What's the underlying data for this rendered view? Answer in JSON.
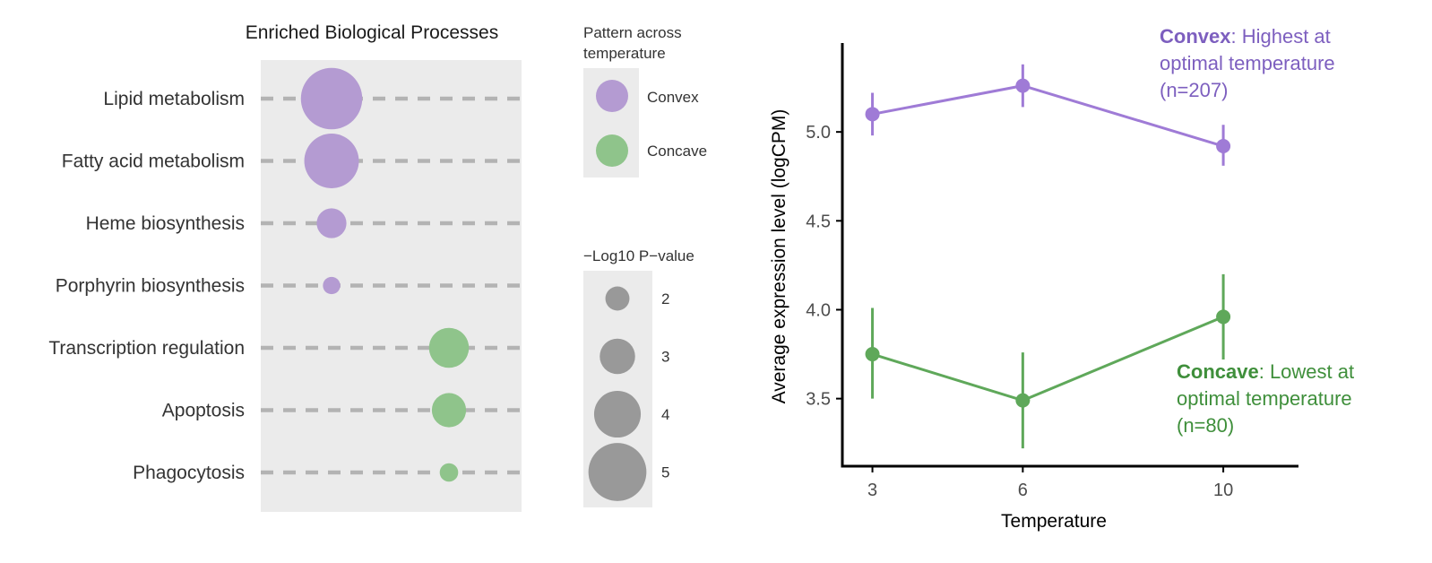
{
  "chart_data": [
    {
      "type": "scatter",
      "title": "Enriched Biological Processes",
      "categories": [
        "Lipid metabolism",
        "Fatty acid metabolism",
        "Heme biosynthesis",
        "Porphyrin biosynthesis",
        "Transcription regulation",
        "Apoptosis",
        "Phagocytosis"
      ],
      "points": [
        {
          "category": "Lipid metabolism",
          "pattern": "Convex",
          "neg_log10_p": 5.3
        },
        {
          "category": "Fatty acid metabolism",
          "pattern": "Convex",
          "neg_log10_p": 4.7
        },
        {
          "category": "Heme biosynthesis",
          "pattern": "Convex",
          "neg_log10_p": 2.5
        },
        {
          "category": "Porphyrin biosynthesis",
          "pattern": "Convex",
          "neg_log10_p": 1.4
        },
        {
          "category": "Transcription regulation",
          "pattern": "Concave",
          "neg_log10_p": 3.4
        },
        {
          "category": "Apoptosis",
          "pattern": "Concave",
          "neg_log10_p": 2.9
        },
        {
          "category": "Phagocytosis",
          "pattern": "Concave",
          "neg_log10_p": 1.5
        }
      ],
      "legend_pattern": {
        "title": "Pattern across temperature",
        "title_lines": [
          "Pattern across",
          "temperature"
        ],
        "entries": [
          {
            "label": "Convex",
            "color": "#b49bd2"
          },
          {
            "label": "Concave",
            "color": "#8fc48b"
          }
        ]
      },
      "legend_size": {
        "title": "−Log10 P−value",
        "entries": [
          {
            "label": "2",
            "value": 2
          },
          {
            "label": "3",
            "value": 3
          },
          {
            "label": "4",
            "value": 4
          },
          {
            "label": "5",
            "value": 5
          }
        ]
      }
    },
    {
      "type": "line",
      "xlabel": "Temperature",
      "ylabel": "Average expression level (logCPM)",
      "x": [
        3,
        6,
        10
      ],
      "x_ticks": [
        "3",
        "6",
        "10"
      ],
      "xlim": [
        2.4,
        11.5
      ],
      "y_ticks": [
        "3.5",
        "4.0",
        "4.5",
        "5.0"
      ],
      "ylim": [
        3.12,
        5.5
      ],
      "grid": false,
      "series": [
        {
          "name": "Convex",
          "color": "#9f7bd6",
          "values": [
            5.1,
            5.26,
            4.92
          ],
          "err_low": [
            4.98,
            5.14,
            4.81
          ],
          "err_high": [
            5.22,
            5.38,
            5.04
          ],
          "annotation": {
            "bold": "Convex",
            "lines": [
              ": Highest at",
              "optimal temperature",
              "(n=207)"
            ]
          }
        },
        {
          "name": "Concave",
          "color": "#5fa85a",
          "values": [
            3.75,
            3.49,
            3.96
          ],
          "err_low": [
            3.5,
            3.22,
            3.72
          ],
          "err_high": [
            4.01,
            3.76,
            4.2
          ],
          "annotation": {
            "bold": "Concave",
            "lines": [
              ": Lowest at",
              "optimal temperature",
              "(n=80)"
            ]
          }
        }
      ]
    }
  ]
}
